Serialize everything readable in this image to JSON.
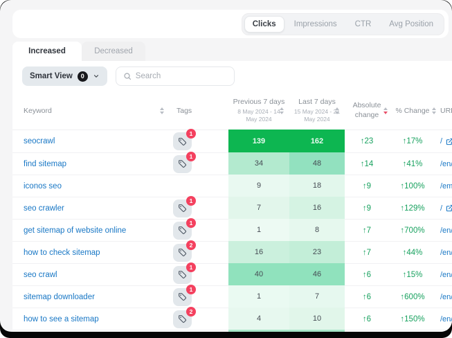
{
  "toolbar": {
    "metric_tabs": [
      {
        "label": "Clicks",
        "active": true
      },
      {
        "label": "Impressions",
        "active": false
      },
      {
        "label": "CTR",
        "active": false
      },
      {
        "label": "Avg Position",
        "active": false
      }
    ]
  },
  "tabs": [
    {
      "label": "Increased",
      "active": true
    },
    {
      "label": "Decreased",
      "active": false
    }
  ],
  "filters": {
    "smart_view_label": "Smart View",
    "smart_view_count": "0",
    "search_placeholder": "Search"
  },
  "symbols": {
    "up_arrow": "↑"
  },
  "colors": {
    "accent_green": "#0db651",
    "change_green": "#17a15e",
    "badge_red": "#f4415f",
    "sort_active_red": "#e8506a",
    "link_blue": "#1877c5"
  },
  "table": {
    "headers": {
      "keyword": "Keyword",
      "tags": "Tags",
      "previous": {
        "title": "Previous 7 days",
        "range": "8 May 2024 - 14 May 2024"
      },
      "last": {
        "title": "Last 7 days",
        "range": "15 May 2024 - 21 May 2024"
      },
      "absolute": "Absolute change",
      "percent": "% Change",
      "url": "URL",
      "sorted_column": "absolute",
      "sort_direction": "desc"
    },
    "rows": [
      {
        "keyword": "seocrawl",
        "tags": "1",
        "prev": "139",
        "last": "162",
        "abs": "23",
        "pct": "17%",
        "url": "/",
        "prev_bg": "#0db651",
        "last_bg": "#0db651",
        "value_color": "#e9fbf0"
      },
      {
        "keyword": "find sitemap",
        "tags": "1",
        "prev": "34",
        "last": "48",
        "abs": "14",
        "pct": "41%",
        "url": "/en/",
        "prev_bg": "#b3eacf",
        "last_bg": "#92e1bf"
      },
      {
        "keyword": "iconos seo",
        "tags": null,
        "prev": "9",
        "last": "18",
        "abs": "9",
        "pct": "100%",
        "url": "/em",
        "prev_bg": "#e9f9f1",
        "last_bg": "#e2f7ec"
      },
      {
        "keyword": "seo crawler",
        "tags": "1",
        "prev": "7",
        "last": "16",
        "abs": "9",
        "pct": "129%",
        "url": "/",
        "prev_bg": "#e2f6eb",
        "last_bg": "#d5f3e3"
      },
      {
        "keyword": "get sitemap of website online",
        "tags": "1",
        "prev": "1",
        "last": "8",
        "abs": "7",
        "pct": "700%",
        "url": "/en/",
        "prev_bg": "#edfaf3",
        "last_bg": "#e6f8ee"
      },
      {
        "keyword": "how to check sitemap",
        "tags": "2",
        "prev": "16",
        "last": "23",
        "abs": "7",
        "pct": "44%",
        "url": "/en/",
        "prev_bg": "#cbf0dd",
        "last_bg": "#c3eed8"
      },
      {
        "keyword": "seo crawl",
        "tags": "1",
        "prev": "40",
        "last": "46",
        "abs": "6",
        "pct": "15%",
        "url": "/en/",
        "prev_bg": "#90e2bd",
        "last_bg": "#90e2bd"
      },
      {
        "keyword": "sitemap downloader",
        "tags": "1",
        "prev": "1",
        "last": "7",
        "abs": "6",
        "pct": "600%",
        "url": "/en/",
        "prev_bg": "#eafaf2",
        "last_bg": "#e6f8ef"
      },
      {
        "keyword": "how to see a sitemap",
        "tags": "2",
        "prev": "4",
        "last": "10",
        "abs": "6",
        "pct": "150%",
        "url": "/en/",
        "prev_bg": "#e7f8ef",
        "last_bg": "#e1f6ea"
      }
    ],
    "partial_row": {
      "prev_bg": "#a7e7c8",
      "last_bg": "#a7e7c8"
    }
  }
}
